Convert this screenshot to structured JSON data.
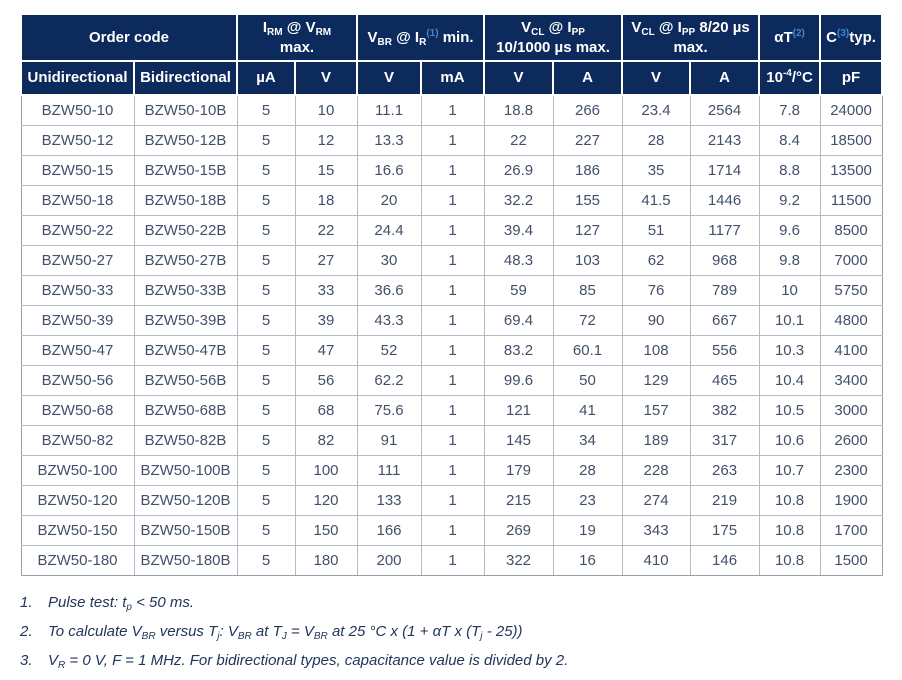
{
  "colors": {
    "header_bg": "#0d2a5c",
    "header_text": "#ffffff",
    "superscript_blue": "#3e86d4",
    "cell_text": "#42506a",
    "grid_line": "#b6bcc6",
    "footnote_text": "#21365c"
  },
  "table": {
    "header_groups": [
      {
        "name": "order-code",
        "colspan": 2,
        "lines": [
          [
            {
              "t": "Order code"
            }
          ]
        ]
      },
      {
        "name": "irm-at-vrm-max",
        "colspan": 2,
        "lines": [
          [
            {
              "t": "I"
            },
            {
              "t": "RM",
              "s": "sub"
            },
            {
              "t": " @ V"
            },
            {
              "t": "RM",
              "s": "sub"
            }
          ],
          [
            {
              "t": "max."
            }
          ]
        ]
      },
      {
        "name": "vbr-at-ir-min",
        "colspan": 2,
        "lines": [
          [
            {
              "t": "V"
            },
            {
              "t": "BR",
              "s": "sub"
            },
            {
              "t": " @ I"
            },
            {
              "t": "R",
              "s": "sub"
            },
            {
              "t": "(1)",
              "s": "supb"
            },
            {
              "t": " min."
            }
          ]
        ]
      },
      {
        "name": "vcl-at-ipp-10-1000us-max",
        "colspan": 2,
        "lines": [
          [
            {
              "t": "V"
            },
            {
              "t": "CL",
              "s": "sub"
            },
            {
              "t": " @ I"
            },
            {
              "t": "PP",
              "s": "sub"
            }
          ],
          [
            {
              "t": "10/1000 µs max."
            }
          ]
        ]
      },
      {
        "name": "vcl-at-ipp-8-20us-max",
        "colspan": 2,
        "lines": [
          [
            {
              "t": "V"
            },
            {
              "t": "CL",
              "s": "sub"
            },
            {
              "t": " @ I"
            },
            {
              "t": "PP",
              "s": "sub"
            },
            {
              "t": " 8/20 µs"
            }
          ],
          [
            {
              "t": "max."
            }
          ]
        ]
      },
      {
        "name": "alpha-t",
        "colspan": 1,
        "lines": [
          [
            {
              "t": "αT"
            },
            {
              "t": "(2)",
              "s": "supb"
            }
          ]
        ]
      },
      {
        "name": "c-typ",
        "colspan": 1,
        "lines": [
          [
            {
              "t": "C"
            },
            {
              "t": "(3)",
              "s": "supb"
            },
            {
              "t": "typ."
            }
          ]
        ]
      }
    ],
    "unit_cells": [
      {
        "name": "unidirectional",
        "segs": [
          {
            "t": "Unidirectional"
          }
        ]
      },
      {
        "name": "bidirectional",
        "segs": [
          {
            "t": "Bidirectional"
          }
        ]
      },
      {
        "name": "irm-ua",
        "segs": [
          {
            "t": "µA"
          }
        ]
      },
      {
        "name": "vrm-v",
        "segs": [
          {
            "t": "V"
          }
        ]
      },
      {
        "name": "vbr-v",
        "segs": [
          {
            "t": "V"
          }
        ]
      },
      {
        "name": "ir-ma",
        "segs": [
          {
            "t": "mA"
          }
        ]
      },
      {
        "name": "vcl-10-1000-v",
        "segs": [
          {
            "t": "V"
          }
        ]
      },
      {
        "name": "ipp-10-1000-a",
        "segs": [
          {
            "t": "A"
          }
        ]
      },
      {
        "name": "vcl-8-20-v",
        "segs": [
          {
            "t": "V"
          }
        ]
      },
      {
        "name": "ipp-8-20-a",
        "segs": [
          {
            "t": "A"
          }
        ]
      },
      {
        "name": "alpha-t-unit",
        "segs": [
          {
            "t": "10"
          },
          {
            "t": "-4",
            "s": "sup"
          },
          {
            "t": "/°C"
          }
        ]
      },
      {
        "name": "c-pf",
        "segs": [
          {
            "t": "pF"
          }
        ]
      }
    ],
    "rows": [
      [
        "BZW50-10",
        "BZW50-10B",
        "5",
        "10",
        "11.1",
        "1",
        "18.8",
        "266",
        "23.4",
        "2564",
        "7.8",
        "24000"
      ],
      [
        "BZW50-12",
        "BZW50-12B",
        "5",
        "12",
        "13.3",
        "1",
        "22",
        "227",
        "28",
        "2143",
        "8.4",
        "18500"
      ],
      [
        "BZW50-15",
        "BZW50-15B",
        "5",
        "15",
        "16.6",
        "1",
        "26.9",
        "186",
        "35",
        "1714",
        "8.8",
        "13500"
      ],
      [
        "BZW50-18",
        "BZW50-18B",
        "5",
        "18",
        "20",
        "1",
        "32.2",
        "155",
        "41.5",
        "1446",
        "9.2",
        "11500"
      ],
      [
        "BZW50-22",
        "BZW50-22B",
        "5",
        "22",
        "24.4",
        "1",
        "39.4",
        "127",
        "51",
        "1177",
        "9.6",
        "8500"
      ],
      [
        "BZW50-27",
        "BZW50-27B",
        "5",
        "27",
        "30",
        "1",
        "48.3",
        "103",
        "62",
        "968",
        "9.8",
        "7000"
      ],
      [
        "BZW50-33",
        "BZW50-33B",
        "5",
        "33",
        "36.6",
        "1",
        "59",
        "85",
        "76",
        "789",
        "10",
        "5750"
      ],
      [
        "BZW50-39",
        "BZW50-39B",
        "5",
        "39",
        "43.3",
        "1",
        "69.4",
        "72",
        "90",
        "667",
        "10.1",
        "4800"
      ],
      [
        "BZW50-47",
        "BZW50-47B",
        "5",
        "47",
        "52",
        "1",
        "83.2",
        "60.1",
        "108",
        "556",
        "10.3",
        "4100"
      ],
      [
        "BZW50-56",
        "BZW50-56B",
        "5",
        "56",
        "62.2",
        "1",
        "99.6",
        "50",
        "129",
        "465",
        "10.4",
        "3400"
      ],
      [
        "BZW50-68",
        "BZW50-68B",
        "5",
        "68",
        "75.6",
        "1",
        "121",
        "41",
        "157",
        "382",
        "10.5",
        "3000"
      ],
      [
        "BZW50-82",
        "BZW50-82B",
        "5",
        "82",
        "91",
        "1",
        "145",
        "34",
        "189",
        "317",
        "10.6",
        "2600"
      ],
      [
        "BZW50-100",
        "BZW50-100B",
        "5",
        "100",
        "111",
        "1",
        "179",
        "28",
        "228",
        "263",
        "10.7",
        "2300"
      ],
      [
        "BZW50-120",
        "BZW50-120B",
        "5",
        "120",
        "133",
        "1",
        "215",
        "23",
        "274",
        "219",
        "10.8",
        "1900"
      ],
      [
        "BZW50-150",
        "BZW50-150B",
        "5",
        "150",
        "166",
        "1",
        "269",
        "19",
        "343",
        "175",
        "10.8",
        "1700"
      ],
      [
        "BZW50-180",
        "BZW50-180B",
        "5",
        "180",
        "200",
        "1",
        "322",
        "16",
        "410",
        "146",
        "10.8",
        "1500"
      ]
    ]
  },
  "footnotes": [
    {
      "num": "1.",
      "segs": [
        {
          "t": "Pulse test: t"
        },
        {
          "t": "p",
          "s": "sub"
        },
        {
          "t": " < 50 ms."
        }
      ]
    },
    {
      "num": "2.",
      "segs": [
        {
          "t": "To calculate V"
        },
        {
          "t": "BR",
          "s": "sub"
        },
        {
          "t": " versus T"
        },
        {
          "t": "j",
          "s": "sub"
        },
        {
          "t": ": V"
        },
        {
          "t": "BR",
          "s": "sub"
        },
        {
          "t": " at T"
        },
        {
          "t": "J",
          "s": "sub"
        },
        {
          "t": " = V"
        },
        {
          "t": "BR",
          "s": "sub"
        },
        {
          "t": " at 25 °C x (1 + αT x (T"
        },
        {
          "t": "j",
          "s": "sub"
        },
        {
          "t": " - 25))"
        }
      ]
    },
    {
      "num": "3.",
      "segs": [
        {
          "t": "V"
        },
        {
          "t": "R",
          "s": "sub"
        },
        {
          "t": " = 0 V, F = 1 MHz. For bidirectional types, capacitance value is divided by 2."
        }
      ]
    }
  ]
}
